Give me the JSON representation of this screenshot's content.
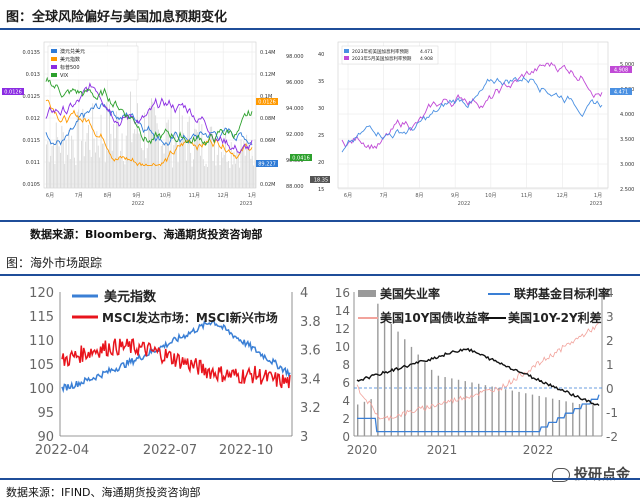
{
  "figure1": {
    "title": "图：全球风险偏好与美国加息预期变化",
    "source": "数据来源：Bloomberg、海通期货投资咨询部",
    "left_panel": {
      "legend": [
        {
          "name": "澳元兑美元",
          "color": "#2f7bd6"
        },
        {
          "name": "美元指数",
          "color": "#ff9900"
        },
        {
          "name": "标普500",
          "color": "#8a2be2"
        },
        {
          "name": "VIX",
          "color": "#2ca02c"
        }
      ],
      "x_ticks": [
        "6月",
        "7月",
        "8月",
        "9月",
        "10月",
        "11月",
        "12月",
        "1月"
      ],
      "x_group": [
        "2022",
        "2023"
      ],
      "y_left": [
        "0.0135",
        "0.013",
        "0.0125",
        "0.012",
        "0.0115",
        "0.011",
        "0.0105"
      ],
      "y_mid": [
        "0.14M",
        "0.12M",
        "0.1M",
        "0.08M",
        "0.06M",
        "0.04M",
        "0.02M"
      ],
      "y_right": [
        "40",
        "35",
        "30",
        "25",
        "20",
        "15"
      ],
      "y_right2": [
        "98.000",
        "96.000",
        "94.000",
        "92.000",
        "90.000",
        "88.000"
      ],
      "badges": [
        "0.0126",
        "0.0126",
        "89.227",
        "0.0416",
        "18.35"
      ]
    },
    "right_panel": {
      "legend": [
        {
          "name": "2023年初美国加息利率预期",
          "value": "4.471",
          "color": "#4a90e2"
        },
        {
          "name": "2023年5月美国加息利率预期",
          "value": "4.908",
          "color": "#c04ad6"
        }
      ],
      "x_ticks": [
        "6月",
        "7月",
        "8月",
        "9月",
        "10月",
        "11月",
        "12月",
        "1月"
      ],
      "x_group": [
        "2022",
        "2023"
      ],
      "y_right": [
        "5.000",
        "4.500",
        "4.000",
        "3.500",
        "3.000",
        "2.500"
      ],
      "badges": [
        "4.908",
        "4.471"
      ]
    }
  },
  "figure2": {
    "title": "图：海外市场跟踪",
    "source": "数据来源：IFIND、海通期货投资咨询部",
    "watermark": "投研点金",
    "chart_left": {
      "type": "line",
      "legend": [
        "美元指数",
        "MSCI发达市场：MSCI新兴市场"
      ],
      "colors": {
        "dxy": "#3a7fd5",
        "ratio": "#e8141c"
      },
      "x_ticks": [
        "2022-04",
        "2022-07",
        "2022-10"
      ],
      "y_left": [
        "120",
        "115",
        "110",
        "105",
        "100",
        "95",
        "90"
      ],
      "y_right": [
        "4",
        "3.8",
        "3.6",
        "3.4",
        "3.2",
        "3"
      ],
      "ylim_left": [
        90,
        120
      ],
      "ylim_right": [
        3,
        4
      ]
    },
    "chart_right": {
      "type": "line",
      "legend": [
        "美国失业率",
        "联邦基金目标利率",
        "美国10Y国债收益率",
        "美国10Y-2Y利差"
      ],
      "colors": {
        "unemp": "#9a9a9a",
        "fed": "#3a7fd5",
        "y10": "#f2a39c",
        "spread": "#111111"
      },
      "x_ticks": [
        "2020",
        "2021",
        "2022"
      ],
      "y_left": [
        "16",
        "14",
        "12",
        "10",
        "8",
        "6",
        "4",
        "2",
        "0"
      ],
      "y_right": [
        "4",
        "3",
        "2",
        "1",
        "0",
        "-1",
        "-2"
      ],
      "ylim_left": [
        0,
        16
      ],
      "ylim_right": [
        -2,
        4
      ]
    }
  }
}
